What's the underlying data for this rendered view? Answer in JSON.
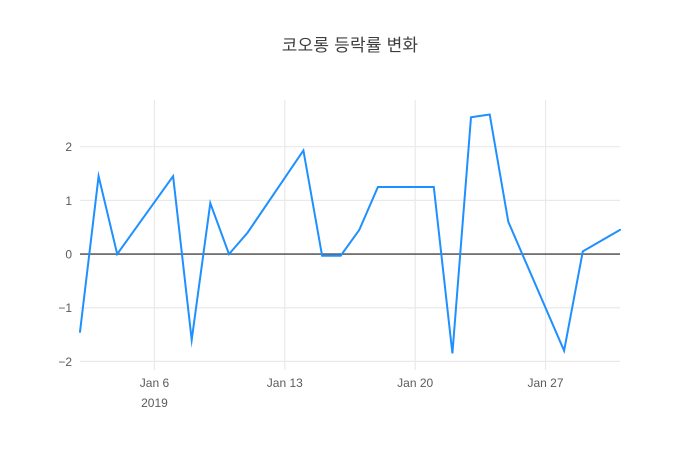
{
  "title": "코오롱 등락률 변화",
  "colors": {
    "line": "#1e90ff",
    "grid": "#e9e9e9",
    "zeroline": "#444444",
    "tick_label": "#5b5b5b",
    "title": "#3d3d3d",
    "background": "#ffffff"
  },
  "chart_data": {
    "type": "line",
    "title": "코오롱 등락률 변화",
    "xlabel": "",
    "ylabel": "",
    "x": [
      "2019-01-02",
      "2019-01-03",
      "2019-01-04",
      "2019-01-07",
      "2019-01-08",
      "2019-01-09",
      "2019-01-10",
      "2019-01-11",
      "2019-01-14",
      "2019-01-15",
      "2019-01-16",
      "2019-01-17",
      "2019-01-18",
      "2019-01-21",
      "2019-01-22",
      "2019-01-23",
      "2019-01-24",
      "2019-01-25",
      "2019-01-28",
      "2019-01-29",
      "2019-01-30",
      "2019-01-31"
    ],
    "y": [
      -1.45,
      1.45,
      0,
      1.45,
      -1.6,
      0.95,
      0,
      0.4,
      1.93,
      -0.03,
      -0.03,
      0.45,
      1.25,
      1.25,
      -1.85,
      2.55,
      2.6,
      0.6,
      -1.8,
      0.05,
      0.25,
      0.45
    ],
    "x_tick_labels": [
      {
        "day": 6,
        "label": "Jan 6",
        "sublabel": "2019"
      },
      {
        "day": 13,
        "label": "Jan 13"
      },
      {
        "day": 20,
        "label": "Jan 20"
      },
      {
        "day": 27,
        "label": "Jan 27"
      }
    ],
    "y_tick_labels": [
      {
        "value": -2,
        "label": "−2"
      },
      {
        "value": -1,
        "label": "−1"
      },
      {
        "value": 0,
        "label": "0"
      },
      {
        "value": 1,
        "label": "1"
      },
      {
        "value": 2,
        "label": "2"
      }
    ],
    "xlim_days": [
      2,
      31
    ],
    "ylim": [
      -2.16,
      2.87
    ],
    "grid": true,
    "legend": false,
    "zeroline": true
  }
}
